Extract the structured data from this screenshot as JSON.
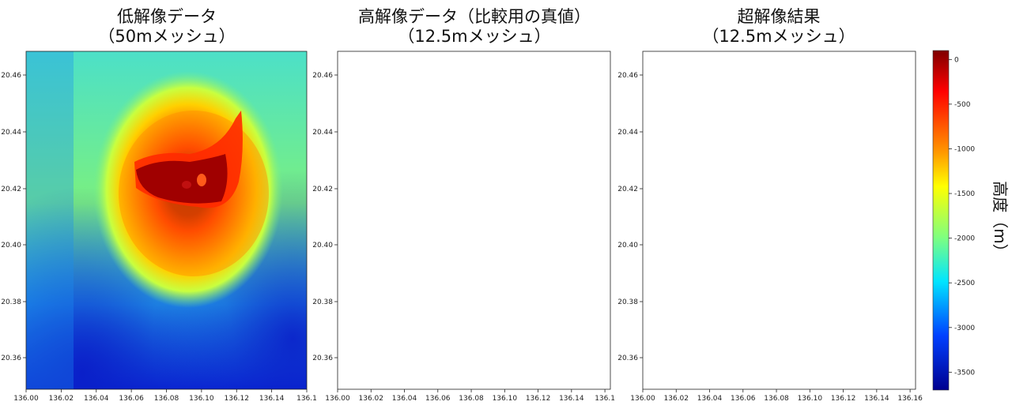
{
  "chart_data": [
    {
      "type": "heatmap",
      "title": "低解像データ\n（50mメッシュ）",
      "title_line1": "低解像データ",
      "title_line2": "（50mメッシュ）",
      "x_ticks": [
        "136.00",
        "136.02",
        "136.04",
        "136.06",
        "136.08",
        "136.10",
        "136.12",
        "136.14",
        "136.1"
      ],
      "y_ticks": [
        "20.46",
        "20.44",
        "20.42",
        "20.40",
        "20.38",
        "20.36"
      ],
      "xlim": [
        136.0,
        136.16
      ],
      "ylim": [
        20.35,
        20.468
      ],
      "coverage": "full"
    },
    {
      "type": "heatmap",
      "title": "高解像データ（比較用の真値）\n（12.5mメッシュ）",
      "title_line1": "高解像データ（比較用の真値）",
      "title_line2": "（12.5mメッシュ）",
      "x_ticks": [
        "136.00",
        "136.02",
        "136.04",
        "136.06",
        "136.08",
        "136.10",
        "136.12",
        "136.14",
        "136.1"
      ],
      "y_ticks": [
        "20.46",
        "20.44",
        "20.42",
        "20.40",
        "20.38",
        "20.36"
      ],
      "xlim": [
        136.0,
        136.16
      ],
      "ylim": [
        20.35,
        20.468
      ],
      "coverage": "partial (missing regions shown white)"
    },
    {
      "type": "heatmap",
      "title": "超解像結果\n（12.5mメッシュ）",
      "title_line1": "超解像結果",
      "title_line2": "（12.5mメッシュ）",
      "x_ticks": [
        "136.00",
        "136.02",
        "136.04",
        "136.06",
        "136.08",
        "136.10",
        "136.12",
        "136.14",
        "136.16"
      ],
      "y_ticks": [
        "20.46",
        "20.44",
        "20.42",
        "20.40",
        "20.38",
        "20.36"
      ],
      "xlim": [
        136.0,
        136.16
      ],
      "ylim": [
        20.35,
        20.468
      ],
      "coverage": "partial (missing regions shown white)"
    }
  ],
  "colorbar": {
    "label": "高度（m）",
    "colormap": "jet",
    "range": [
      -3700,
      100
    ],
    "ticks": [
      "0",
      "-500",
      "-1000",
      "-1500",
      "-2000",
      "-2500",
      "-3000",
      "-3500"
    ],
    "tick_values": [
      0,
      -500,
      -1000,
      -1500,
      -2000,
      -2500,
      -3000,
      -3500
    ]
  }
}
